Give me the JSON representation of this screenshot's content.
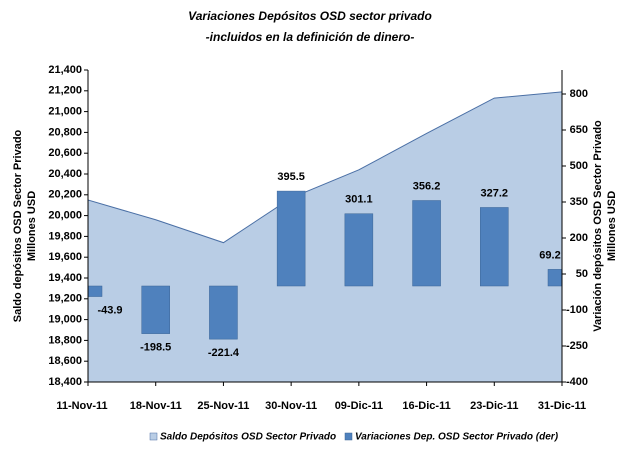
{
  "chart_data": {
    "type": "area_bar",
    "title": "Variaciones Depósitos OSD sector privado",
    "subtitle": "-incluidos en la definición de dinero-",
    "y_label": [
      "Saldo depósitos OSD Sector Privado",
      "Millones  USD"
    ],
    "y2_label": [
      "Variación depósitos OSD Sector Privado",
      "Millones USD"
    ],
    "categories": [
      "11-Nov-11",
      "18-Nov-11",
      "25-Nov-11",
      "30-Nov-11",
      "09-Dic-11",
      "16-Dic-11",
      "23-Dic-11",
      "31-Dic-11"
    ],
    "series": [
      {
        "name": "Saldo Depósitos OSD Sector Privado",
        "type": "area",
        "color": "#b9cde5",
        "line_color": "#4a6fa5",
        "values": [
          20150,
          19960,
          19740,
          20170,
          20440,
          20790,
          21130,
          21190
        ]
      },
      {
        "name": "Variaciones Dep. OSD Sector Privado (der)",
        "type": "bar",
        "axis": "y2",
        "color": "#4f81bd",
        "values": [
          -43.9,
          -198.5,
          -221.4,
          395.5,
          301.1,
          356.2,
          327.2,
          69.2
        ]
      }
    ],
    "ylim": [
      18400,
      21400
    ],
    "yticks": [
      {
        "value": 18400,
        "label": "18,400"
      },
      {
        "value": 18600,
        "label": "18,600"
      },
      {
        "value": 18800,
        "label": "18,800"
      },
      {
        "value": 19000,
        "label": "19,000"
      },
      {
        "value": 19200,
        "label": "19,200"
      },
      {
        "value": 19400,
        "label": "19,400"
      },
      {
        "value": 19600,
        "label": "19,600"
      },
      {
        "value": 19800,
        "label": "19,800"
      },
      {
        "value": 20000,
        "label": "20,000"
      },
      {
        "value": 20200,
        "label": "20,200"
      },
      {
        "value": 20400,
        "label": "20,400"
      },
      {
        "value": 20600,
        "label": "20,600"
      },
      {
        "value": 20800,
        "label": "20,800"
      },
      {
        "value": 21000,
        "label": "21,000"
      },
      {
        "value": 21200,
        "label": "21,200"
      },
      {
        "value": 21400,
        "label": "21,400"
      }
    ],
    "y2lim": [
      -400,
      900
    ],
    "y2ticks": [
      -400,
      -250,
      -100,
      50,
      200,
      350,
      500,
      650,
      800
    ]
  }
}
